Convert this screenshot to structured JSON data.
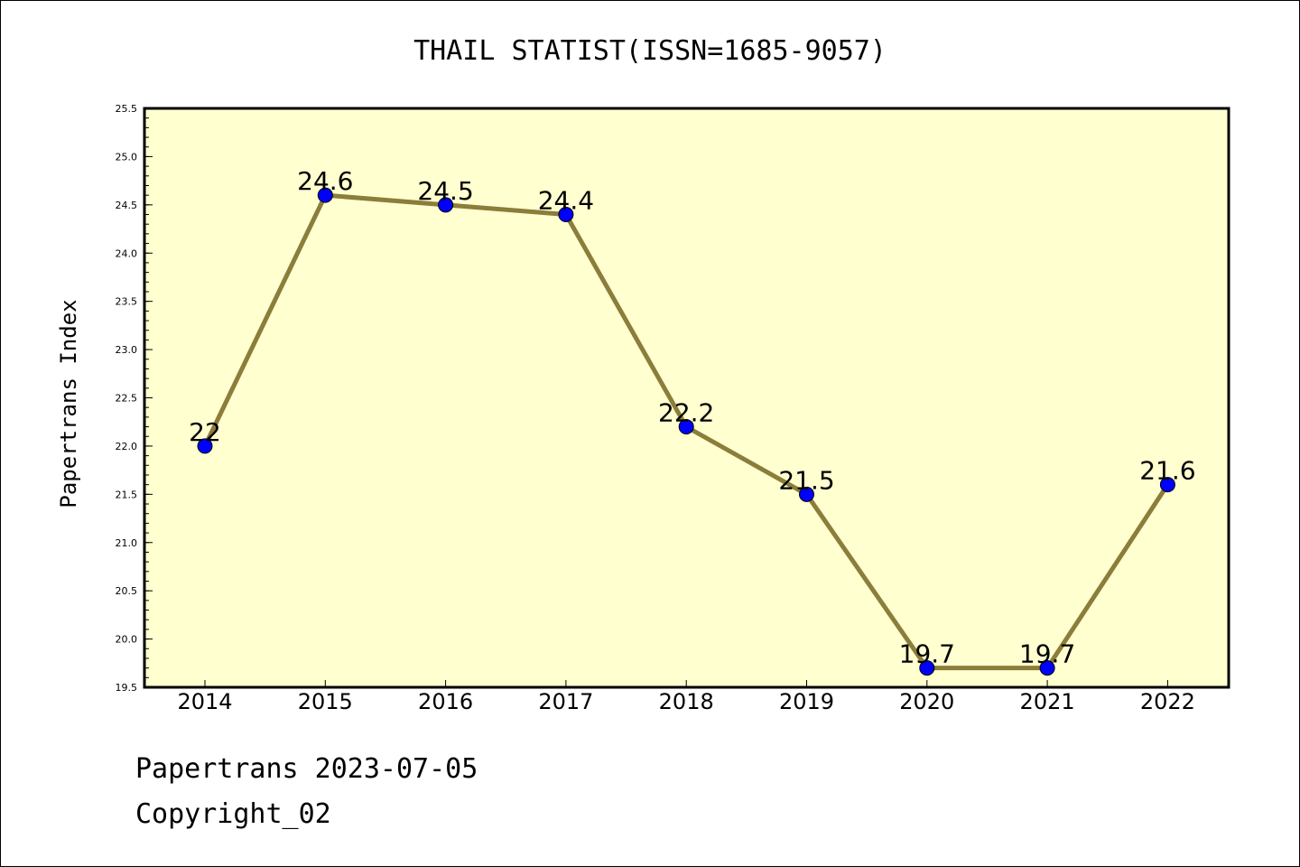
{
  "chart_data": {
    "type": "line",
    "title": "THAIL STATIST(ISSN=1685-9057)",
    "ylabel": "Papertrans Index",
    "xlabel": "",
    "categories": [
      "2014",
      "2015",
      "2016",
      "2017",
      "2018",
      "2019",
      "2020",
      "2021",
      "2022"
    ],
    "values": [
      22,
      24.6,
      24.5,
      24.4,
      22.2,
      21.5,
      19.7,
      19.7,
      21.6
    ],
    "data_labels": [
      "22",
      "24.6",
      "24.5",
      "24.4",
      "22.2",
      "21.5",
      "19.7",
      "19.7",
      "21.6"
    ],
    "ylim": [
      19.5,
      25.5
    ],
    "yticks": [
      "19.5",
      "20.0",
      "20.5",
      "21.0",
      "21.5",
      "22.0",
      "22.5",
      "23.0",
      "23.5",
      "24.0",
      "24.5",
      "25.0",
      "25.5"
    ],
    "grid": false,
    "legend": "none",
    "colors": {
      "line": "#8b7d3a",
      "marker": "#0000ff",
      "plot_background": "#ffffd0",
      "axes": "#000000"
    }
  },
  "footer": {
    "line1": "Papertrans 2023-07-05",
    "line2": "Copyright_02"
  }
}
